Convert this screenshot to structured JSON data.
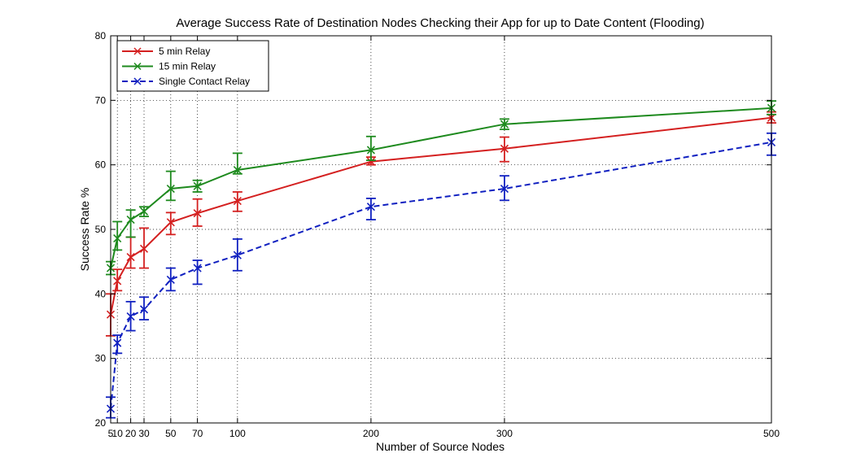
{
  "chart_data": {
    "type": "line",
    "title": "Average Success Rate of Destination Nodes Checking their App for up to Date Content (Flooding)",
    "xlabel": "Number of Source Nodes",
    "ylabel": "Success Rate %",
    "x": [
      5,
      10,
      20,
      30,
      50,
      70,
      100,
      200,
      300,
      500
    ],
    "xlim": [
      5,
      500
    ],
    "ylim": [
      20,
      80
    ],
    "xticks": [
      5,
      10,
      20,
      30,
      50,
      70,
      100,
      200,
      300,
      500
    ],
    "yticks": [
      20,
      30,
      40,
      50,
      60,
      70,
      80
    ],
    "grid": true,
    "legend_position": "top-left",
    "series": [
      {
        "name": "5 min Relay",
        "color": "#d42020",
        "line_style": "solid",
        "marker": "x",
        "values": [
          36.8,
          42.0,
          45.7,
          47.0,
          51.1,
          52.5,
          54.4,
          60.5,
          62.5,
          67.3
        ],
        "err_low": [
          33.5,
          40.5,
          44.0,
          44.0,
          49.2,
          50.5,
          52.8,
          60.0,
          60.5,
          66.5
        ],
        "err_high": [
          40.0,
          43.8,
          48.8,
          50.2,
          52.6,
          54.7,
          55.8,
          61.2,
          64.3,
          68.2
        ]
      },
      {
        "name": "15 min Relay",
        "color": "#1e8a1e",
        "line_style": "solid",
        "marker": "x",
        "values": [
          44.0,
          48.6,
          51.5,
          52.8,
          56.3,
          56.7,
          59.2,
          62.3,
          66.3,
          68.8
        ],
        "err_low": [
          43.0,
          46.8,
          48.8,
          52.0,
          54.5,
          55.8,
          58.6,
          60.7,
          65.5,
          67.8
        ],
        "err_high": [
          45.0,
          51.2,
          53.0,
          53.5,
          59.0,
          57.6,
          61.8,
          64.4,
          67.1,
          69.9
        ]
      },
      {
        "name": "Single Contact Relay",
        "color": "#1020c0",
        "line_style": "dashed",
        "marker": "x",
        "values": [
          22.2,
          32.4,
          36.5,
          37.6,
          42.2,
          44.0,
          46.0,
          53.5,
          56.3,
          63.5
        ],
        "err_low": [
          20.8,
          30.8,
          34.3,
          36.0,
          40.5,
          41.5,
          43.6,
          51.5,
          54.5,
          61.5
        ],
        "err_high": [
          24.0,
          33.6,
          38.8,
          39.5,
          44.0,
          45.2,
          48.5,
          54.8,
          58.3,
          64.9
        ]
      }
    ]
  }
}
